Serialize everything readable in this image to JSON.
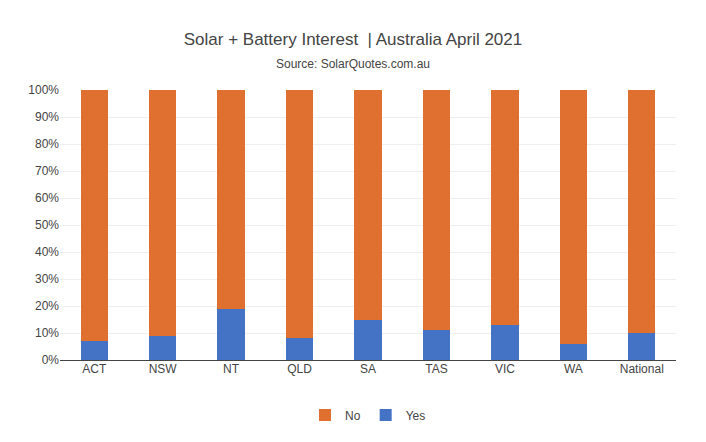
{
  "chart_data": {
    "type": "bar",
    "stacked": true,
    "title": "Solar + Battery Interest  | Australia April 2021",
    "subtitle": "Source: SolarQuotes.com.au",
    "categories": [
      "ACT",
      "NSW",
      "NT",
      "QLD",
      "SA",
      "TAS",
      "VIC",
      "WA",
      "National"
    ],
    "series": [
      {
        "name": "Yes",
        "color": "#4472C4",
        "values": [
          7,
          9,
          19,
          8,
          15,
          11,
          13,
          6,
          10
        ]
      },
      {
        "name": "No",
        "color": "#E07030",
        "values": [
          93,
          91,
          81,
          92,
          85,
          89,
          87,
          94,
          90
        ]
      }
    ],
    "ylim": [
      0,
      100
    ],
    "yticks": [
      {
        "value": 0,
        "label": "0%"
      },
      {
        "value": 10,
        "label": "10%"
      },
      {
        "value": 20,
        "label": "20%"
      },
      {
        "value": 30,
        "label": "30%"
      },
      {
        "value": 40,
        "label": "40%"
      },
      {
        "value": 50,
        "label": "50%"
      },
      {
        "value": 60,
        "label": "60%"
      },
      {
        "value": 70,
        "label": "70%"
      },
      {
        "value": 80,
        "label": "80%"
      },
      {
        "value": 90,
        "label": "90%"
      },
      {
        "value": 100,
        "label": "100%"
      }
    ],
    "grid": true,
    "legend": "bottom"
  }
}
